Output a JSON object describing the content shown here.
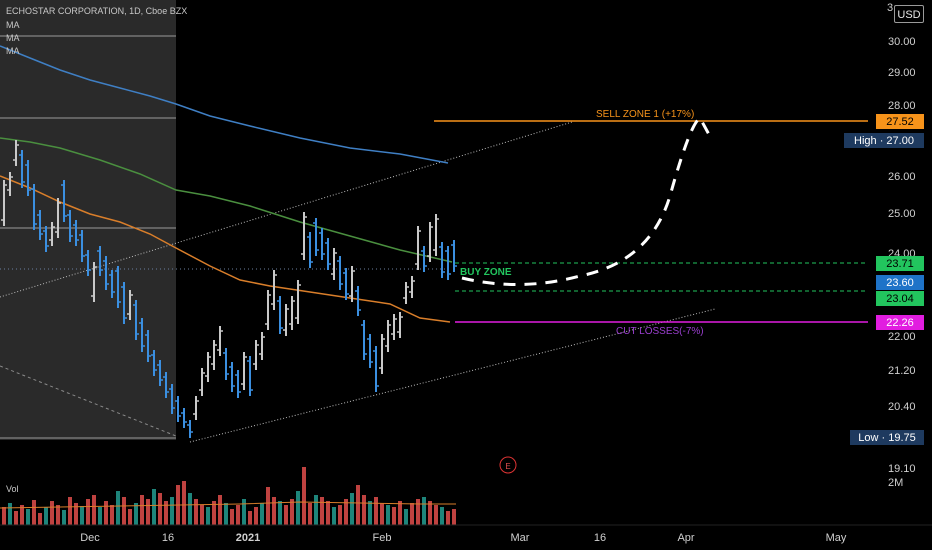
{
  "header": {
    "title": "ECHOSTAR CORPORATION, 1D, Cboe BZX",
    "indicators": [
      "MA",
      "MA",
      "MA"
    ],
    "currency": "USD",
    "top_price_partial": "3"
  },
  "price_scale": {
    "ticks": [
      "30.00",
      "29.00",
      "28.00",
      "26.00",
      "25.00",
      "24.00",
      "22.00",
      "21.20",
      "20.40",
      "19.10"
    ],
    "labels": [
      {
        "text": "27.52",
        "bg": "#f7931a",
        "fg": "#000000"
      },
      {
        "text": "High",
        "value": "27.00",
        "bg": "#1e3a5f",
        "fg": "#ffffff"
      },
      {
        "text": "23.71",
        "bg": "#22c55e",
        "fg": "#000000"
      },
      {
        "text": "23.60",
        "bg": "#1e73c8",
        "fg": "#ffffff"
      },
      {
        "text": "23.04",
        "bg": "#22c55e",
        "fg": "#000000"
      },
      {
        "text": "22.26",
        "bg": "#e11de0",
        "fg": "#ffffff"
      },
      {
        "text": "Low",
        "value": "19.75",
        "bg": "#1e3a5f",
        "fg": "#ffffff"
      }
    ],
    "volume_scale": "2M"
  },
  "time_axis": {
    "labels": [
      "Dec",
      "16",
      "2021",
      "Feb",
      "Mar",
      "16",
      "Apr",
      "May"
    ]
  },
  "annotations": {
    "sell_zone": "SELL ZONE 1 (+17%)",
    "buy_zone": "BUY ZONE",
    "cut_losses": "CUT LOSSES(-7%)",
    "earnings_marker": "E",
    "volume_label": "Vol"
  },
  "colors": {
    "background": "#000000",
    "up_bar": "#c9c9c9",
    "down_bar": "#3b8fe0",
    "ma_blue": "#3f7fc4",
    "ma_green": "#4a8f3f",
    "ma_orange": "#d97e2a",
    "sell_line": "#f7931a",
    "buy_line": "#22c55e",
    "cut_line": "#e11de0",
    "vol_up": "#26a69a",
    "vol_down": "#ef5350"
  }
}
